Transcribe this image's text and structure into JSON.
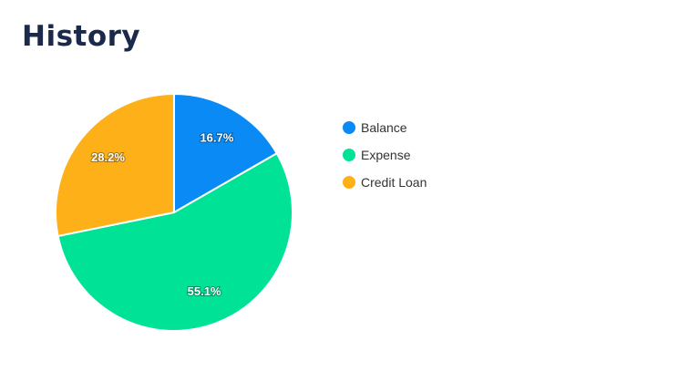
{
  "title": "History",
  "chart_data": {
    "type": "pie",
    "title": "",
    "legend_position": "right",
    "slices": [
      {
        "label": "Balance",
        "value": 16.7,
        "display": "16.7%",
        "color": "#0a8af5"
      },
      {
        "label": "Expense",
        "value": 55.1,
        "display": "55.1%",
        "color": "#00e396"
      },
      {
        "label": "Credit Loan",
        "value": 28.2,
        "display": "28.2%",
        "color": "#feb019"
      }
    ]
  }
}
